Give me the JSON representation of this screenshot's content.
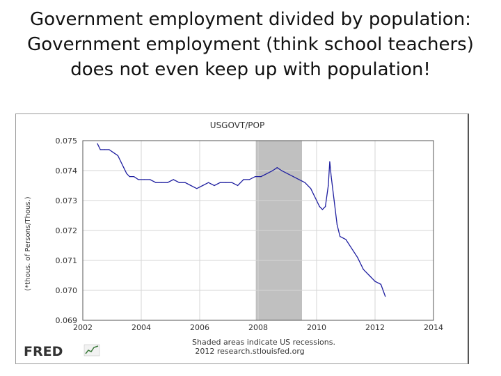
{
  "slide": {
    "title_lines": [
      "Government employment divided by population:",
      "Government employment (think school teachers)",
      "does not even keep up with population!"
    ]
  },
  "chart_data": {
    "type": "line",
    "title": "USGOVT/POP",
    "ylabel": "(*thous. of Persons/Thous.)",
    "xlabel": "",
    "xlim": [
      2002,
      2014
    ],
    "ylim": [
      0.069,
      0.075
    ],
    "x_ticks": [
      "2002",
      "2004",
      "2006",
      "2008",
      "2010",
      "2012",
      "2014"
    ],
    "y_ticks": [
      "0.075",
      "0.074",
      "0.073",
      "0.072",
      "0.071",
      "0.070",
      "0.069"
    ],
    "grid": true,
    "recessions": [
      {
        "start": 2007.92,
        "end": 2009.5
      }
    ],
    "series": [
      {
        "color": "#1f1fa0",
        "x": [
          2002.5,
          2002.6,
          2002.75,
          2002.9,
          2003.05,
          2003.2,
          2003.3,
          2003.4,
          2003.5,
          2003.6,
          2003.75,
          2003.9,
          2004.1,
          2004.3,
          2004.5,
          2004.7,
          2004.9,
          2005.1,
          2005.3,
          2005.5,
          2005.7,
          2005.9,
          2006.1,
          2006.3,
          2006.5,
          2006.7,
          2006.9,
          2007.1,
          2007.3,
          2007.5,
          2007.7,
          2007.9,
          2008.1,
          2008.3,
          2008.5,
          2008.65,
          2008.8,
          2009.0,
          2009.2,
          2009.4,
          2009.6,
          2009.8,
          2010.0,
          2010.1,
          2010.2,
          2010.3,
          2010.4,
          2010.45,
          2010.5,
          2010.6,
          2010.7,
          2010.8,
          2011.0,
          2011.2,
          2011.4,
          2011.6,
          2011.8,
          2012.0,
          2012.2,
          2012.35
        ],
        "values": [
          0.0749,
          0.0747,
          0.0747,
          0.0747,
          0.0746,
          0.0745,
          0.0743,
          0.0741,
          0.0739,
          0.0738,
          0.0738,
          0.0737,
          0.0737,
          0.0737,
          0.0736,
          0.0736,
          0.0736,
          0.0737,
          0.0736,
          0.0736,
          0.0735,
          0.0734,
          0.0735,
          0.0736,
          0.0735,
          0.0736,
          0.0736,
          0.0736,
          0.0735,
          0.0737,
          0.0737,
          0.0738,
          0.0738,
          0.0739,
          0.074,
          0.0741,
          0.074,
          0.0739,
          0.0738,
          0.0737,
          0.0736,
          0.0734,
          0.073,
          0.0728,
          0.0727,
          0.0728,
          0.0735,
          0.0743,
          0.0738,
          0.073,
          0.0722,
          0.0718,
          0.0717,
          0.0714,
          0.0711,
          0.0707,
          0.0705,
          0.0703,
          0.0702,
          0.0698
        ]
      }
    ]
  },
  "footer": {
    "logo_text": "FRED",
    "note_line1": "Shaded areas indicate US recessions.",
    "note_line2": "2012 research.stlouisfed.org"
  },
  "colors": {
    "line": "#1f1fa0",
    "recession": "#c0c0c0",
    "grid": "#d6d6d6",
    "axis": "#555555"
  }
}
